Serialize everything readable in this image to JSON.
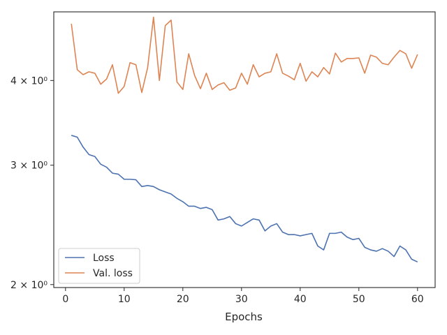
{
  "chart_data": {
    "type": "line",
    "title": "",
    "xlabel": "Epochs",
    "ylabel": "",
    "yscale": "log",
    "xlim": [
      -2,
      63
    ],
    "ylim": [
      1.98,
      5.05
    ],
    "x_ticks": [
      0,
      10,
      20,
      30,
      40,
      50,
      60
    ],
    "y_ticks": [
      {
        "value": 2,
        "label": "2 × 10⁰"
      },
      {
        "value": 3,
        "label": "3 × 10⁰"
      },
      {
        "value": 4,
        "label": "4 × 10⁰"
      }
    ],
    "grid": false,
    "legend_position": "lower-left",
    "x": [
      1,
      2,
      3,
      4,
      5,
      6,
      7,
      8,
      9,
      10,
      11,
      12,
      13,
      14,
      15,
      16,
      17,
      18,
      19,
      20,
      21,
      22,
      23,
      24,
      25,
      26,
      27,
      28,
      29,
      30,
      31,
      32,
      33,
      34,
      35,
      36,
      37,
      38,
      39,
      40,
      41,
      42,
      43,
      44,
      45,
      46,
      47,
      48,
      49,
      50,
      51,
      52,
      53,
      54,
      55,
      56,
      57,
      58,
      59,
      60
    ],
    "series": [
      {
        "name": "Loss",
        "color": "#4c72b0",
        "values": [
          3.32,
          3.3,
          3.19,
          3.11,
          3.09,
          3.01,
          2.98,
          2.92,
          2.91,
          2.86,
          2.86,
          2.855,
          2.79,
          2.8,
          2.79,
          2.76,
          2.74,
          2.72,
          2.68,
          2.65,
          2.61,
          2.61,
          2.59,
          2.6,
          2.58,
          2.49,
          2.5,
          2.52,
          2.46,
          2.44,
          2.47,
          2.5,
          2.49,
          2.4,
          2.44,
          2.46,
          2.39,
          2.37,
          2.37,
          2.36,
          2.37,
          2.38,
          2.28,
          2.25,
          2.38,
          2.38,
          2.39,
          2.35,
          2.33,
          2.34,
          2.27,
          2.25,
          2.24,
          2.26,
          2.24,
          2.2,
          2.28,
          2.25,
          2.18,
          2.16
        ]
      },
      {
        "name": "Val. loss",
        "color": "#dd8452",
        "values": [
          4.85,
          4.15,
          4.08,
          4.12,
          4.1,
          3.95,
          4.02,
          4.22,
          3.83,
          3.92,
          4.25,
          4.22,
          3.84,
          4.18,
          4.96,
          4.0,
          4.82,
          4.91,
          3.98,
          3.88,
          4.38,
          4.07,
          3.89,
          4.1,
          3.88,
          3.94,
          3.97,
          3.87,
          3.9,
          4.1,
          3.95,
          4.22,
          4.05,
          4.1,
          4.12,
          4.38,
          4.1,
          4.06,
          4.01,
          4.24,
          3.99,
          4.12,
          4.05,
          4.18,
          4.09,
          4.39,
          4.26,
          4.31,
          4.31,
          4.32,
          4.1,
          4.36,
          4.33,
          4.24,
          4.22,
          4.33,
          4.43,
          4.38,
          4.17,
          4.37
        ]
      }
    ]
  }
}
